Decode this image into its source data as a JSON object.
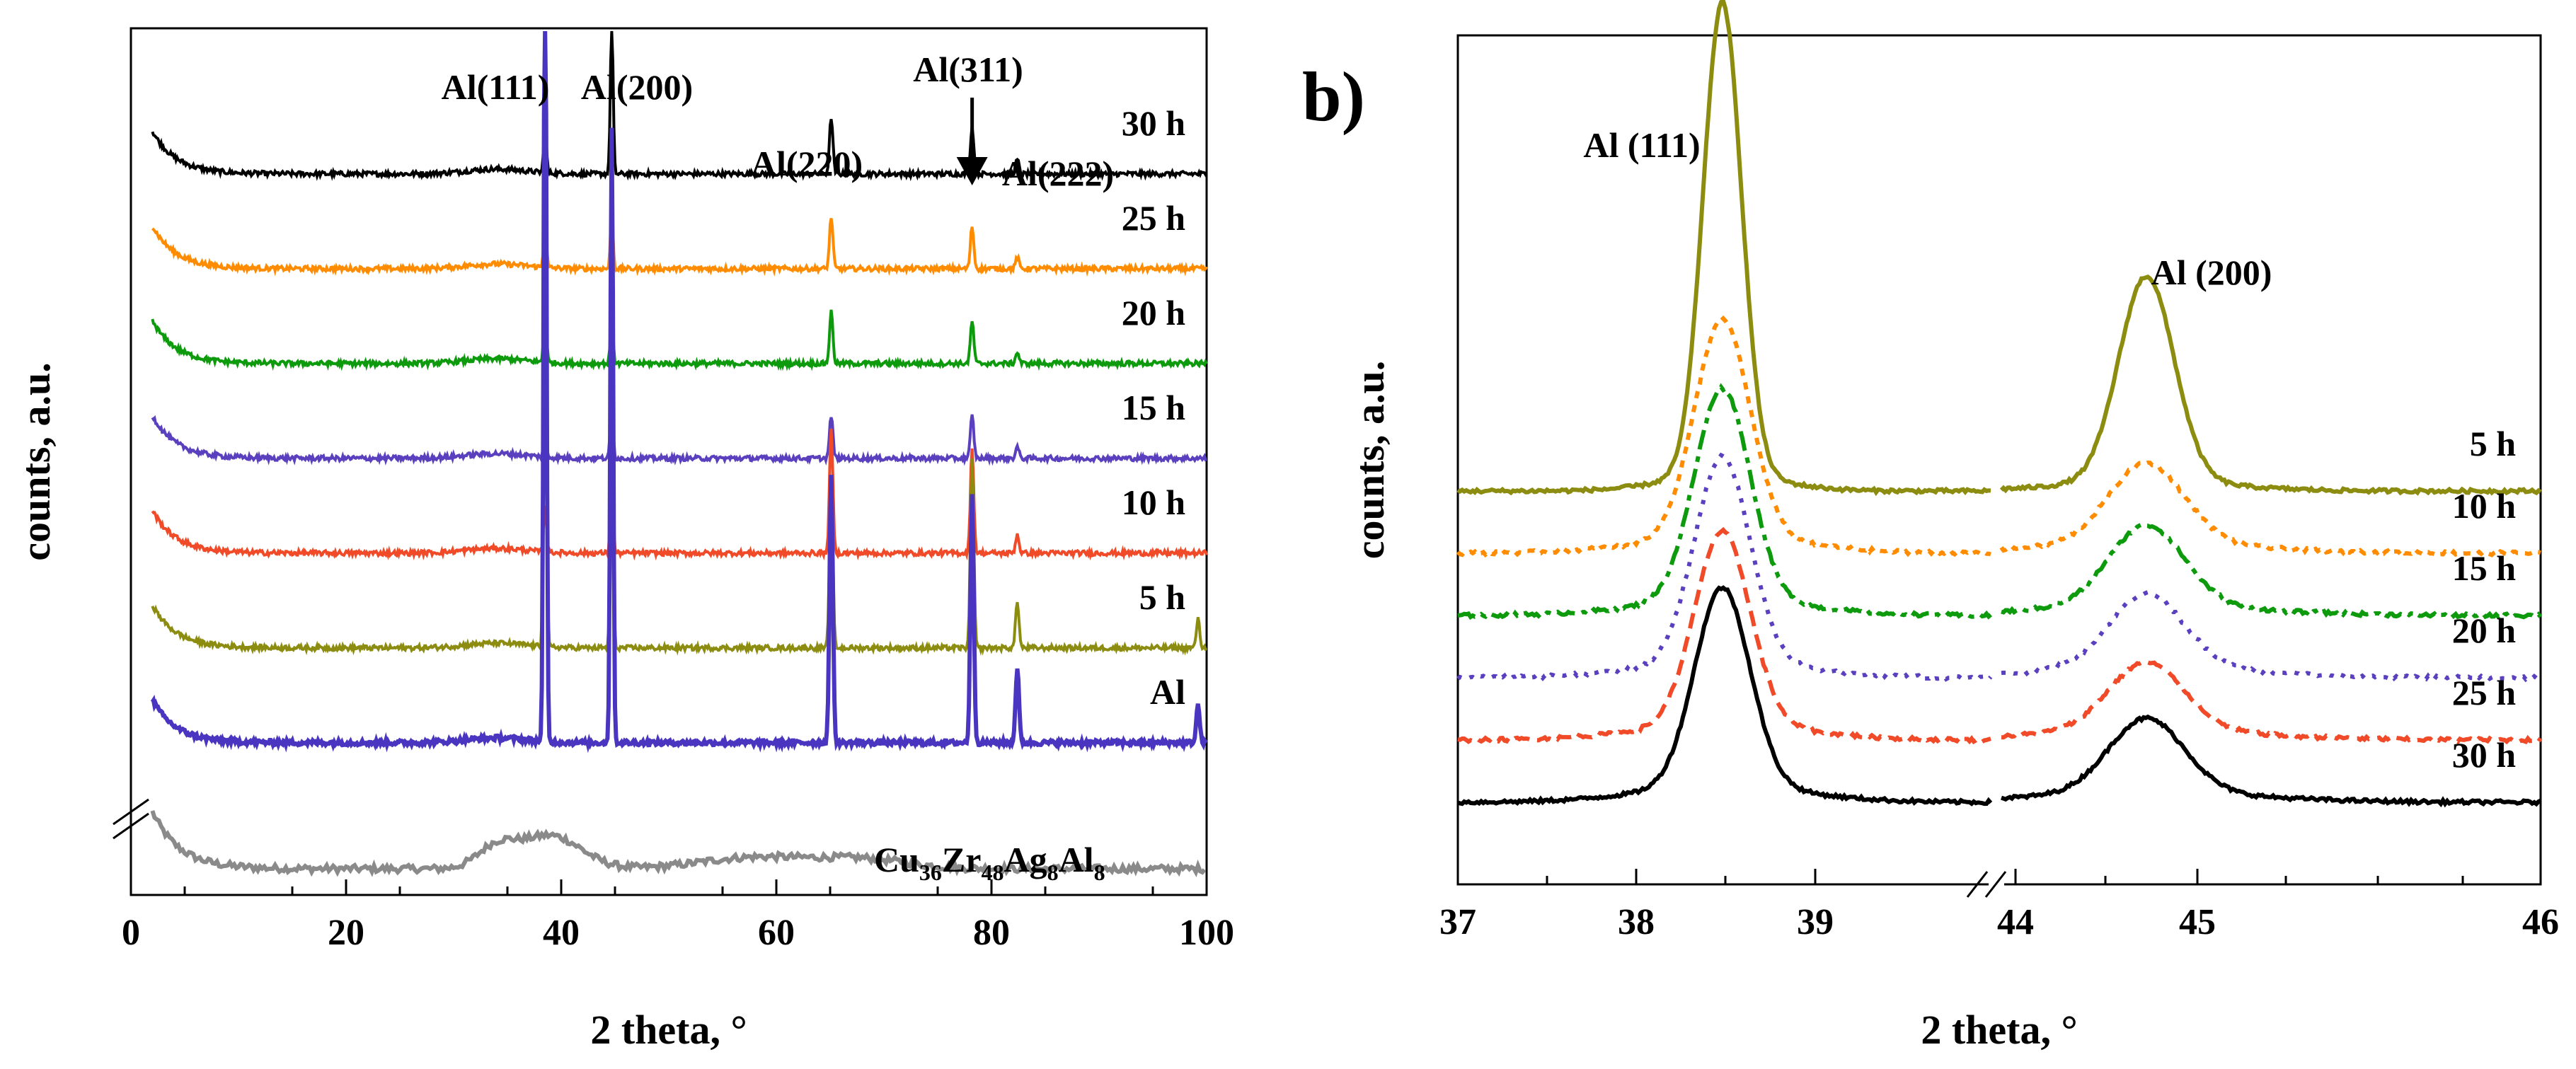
{
  "chart_data": [
    {
      "type": "line",
      "panel": "a",
      "xlabel": "2 theta, °",
      "ylabel": "counts, a.u.",
      "xlim": [
        0,
        100
      ],
      "xticks": [
        0,
        20,
        40,
        60,
        80,
        100
      ],
      "xtick_labels": [
        "0",
        "20",
        "40",
        "60",
        "80",
        "100"
      ],
      "peak_labels": [
        {
          "text": "Al(111)",
          "x": 38.5
        },
        {
          "text": "Al(200)",
          "x": 44.7
        },
        {
          "text": "Al(220)",
          "x": 65.1
        },
        {
          "text": "Al(311)",
          "x": 78.2
        },
        {
          "text": "Al(222)",
          "x": 82.4
        }
      ],
      "series": [
        {
          "name": "30 h",
          "color": "#000000",
          "offset": 6.3,
          "peaks": [
            0.5,
            1.6,
            0.6,
            0.5,
            0.15,
            0.0
          ]
        },
        {
          "name": "25 h",
          "color": "#ff8c00",
          "offset": 5.3,
          "peaks": [
            0.5,
            0.55,
            0.55,
            0.45,
            0.12,
            0.0
          ]
        },
        {
          "name": "20 h",
          "color": "#0d9a0d",
          "offset": 4.3,
          "peaks": [
            0.6,
            0.55,
            0.55,
            0.45,
            0.12,
            0.0
          ]
        },
        {
          "name": "15 h",
          "color": "#5a3fbf",
          "offset": 3.3,
          "peaks": [
            0.3,
            0.7,
            0.45,
            0.45,
            0.12,
            0.0
          ]
        },
        {
          "name": "10 h",
          "color": "#f04a28",
          "offset": 2.3,
          "peaks": [
            0.5,
            0.9,
            1.3,
            1.1,
            0.2,
            0.0
          ]
        },
        {
          "name": "5 h",
          "color": "#8c8c10",
          "offset": 1.3,
          "peaks": [
            5.0,
            3.0,
            1.7,
            2.0,
            0.5,
            0.3
          ]
        },
        {
          "name": "Al",
          "color": "#4a35c0",
          "offset": 0.3,
          "peaks": [
            9.0,
            6.5,
            2.8,
            2.6,
            0.8,
            0.4
          ]
        }
      ],
      "amorphous": {
        "name": "Cu36Zr48Ag8Al8",
        "label_parts": [
          [
            "Cu",
            "36"
          ],
          [
            "Zr",
            "48"
          ],
          [
            "Ag",
            "8"
          ],
          [
            "Al",
            "8"
          ]
        ],
        "color": "#8a8a8a"
      }
    },
    {
      "type": "line",
      "panel": "b",
      "panel_label": "b)",
      "xlabel": "2 theta, °",
      "ylabel": "counts, a.u.",
      "xticks": [
        37,
        38,
        39,
        44,
        45,
        46
      ],
      "xtick_labels": [
        "37",
        "38",
        "39",
        "44",
        "45",
        "46"
      ],
      "xbreak": [
        39.5,
        43.5
      ],
      "peak_labels": [
        {
          "text": "Al (111)",
          "x": 38.1
        },
        {
          "text": "Al (200)",
          "x": 44.5
        }
      ],
      "series": [
        {
          "name": "5 h",
          "color": "#8c8c10",
          "dash": "solid",
          "offset": 5.5,
          "h111": 7.6,
          "h200": 3.3
        },
        {
          "name": "10 h",
          "color": "#ff8c00",
          "dash": "dot",
          "offset": 4.5,
          "h111": 3.5,
          "h200": 1.3
        },
        {
          "name": "15 h",
          "color": "#0d9a0d",
          "dash": "dashdot",
          "offset": 3.5,
          "h111": 3.4,
          "h200": 1.3
        },
        {
          "name": "20 h",
          "color": "#5a3fbf",
          "dash": "dotted",
          "offset": 2.5,
          "h111": 3.3,
          "h200": 1.2
        },
        {
          "name": "25 h",
          "color": "#f04a28",
          "dash": "dash",
          "offset": 1.5,
          "h111": 3.1,
          "h200": 1.1
        },
        {
          "name": "30 h",
          "color": "#000000",
          "dash": "solid",
          "offset": 0.5,
          "h111": 3.2,
          "h200": 1.2
        }
      ]
    }
  ]
}
